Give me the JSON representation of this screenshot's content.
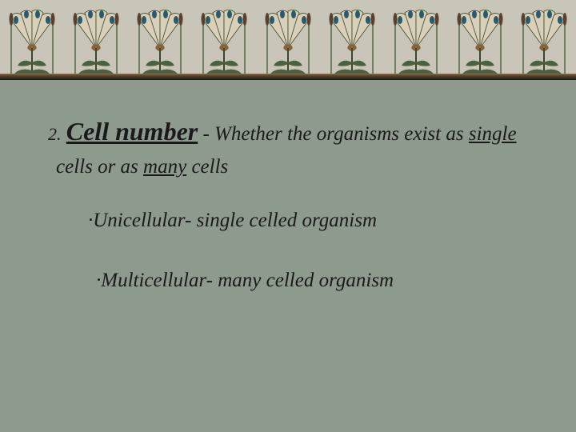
{
  "slide": {
    "background_color": "#8d9a8d",
    "border": {
      "background_color": "#c9c5b8",
      "motif_count": 9,
      "motif_colors": {
        "stem": "#3a4a2a",
        "leaf": "#4a6040",
        "flower_petal": "#d8d0b8",
        "flower_center": "#8a6040",
        "accent": "#2a5a6a",
        "cattail": "#5a4030"
      },
      "divider_color": "#4a3a28"
    },
    "content": {
      "number_prefix": "2.",
      "heading": "Cell number",
      "description_parts": {
        "part1": " - Whether the organisms exist as ",
        "underlined1": "single",
        "part2": " cells or as ",
        "underlined2": "many",
        "part3": " cells"
      },
      "bullets": [
        "·Unicellular- single celled organism",
        "·Multicellular- many celled organism"
      ],
      "text_color": "#1a1a1a",
      "heading_fontsize": 32,
      "body_fontsize": 25
    }
  }
}
